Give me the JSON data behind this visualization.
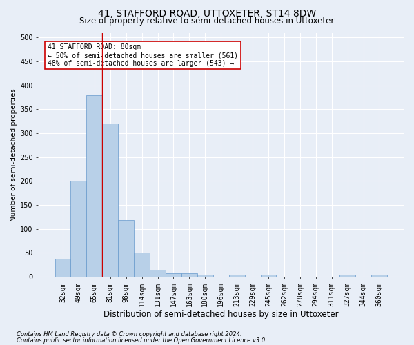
{
  "title_line1": "41, STAFFORD ROAD, UTTOXETER, ST14 8DW",
  "title_line2": "Size of property relative to semi-detached houses in Uttoxeter",
  "xlabel": "Distribution of semi-detached houses by size in Uttoxeter",
  "ylabel": "Number of semi-detached properties",
  "categories": [
    "32sqm",
    "49sqm",
    "65sqm",
    "81sqm",
    "98sqm",
    "114sqm",
    "131sqm",
    "147sqm",
    "163sqm",
    "180sqm",
    "196sqm",
    "213sqm",
    "229sqm",
    "245sqm",
    "262sqm",
    "278sqm",
    "294sqm",
    "311sqm",
    "327sqm",
    "344sqm",
    "360sqm"
  ],
  "values": [
    38,
    200,
    380,
    320,
    118,
    50,
    15,
    7,
    7,
    5,
    0,
    5,
    0,
    5,
    0,
    0,
    0,
    0,
    5,
    0,
    5
  ],
  "bar_color": "#b8d0e8",
  "bar_edge_color": "#6699cc",
  "vline_x_index": 3,
  "vline_color": "#cc0000",
  "annotation_text": "41 STAFFORD ROAD: 80sqm\n← 50% of semi-detached houses are smaller (561)\n48% of semi-detached houses are larger (543) →",
  "annotation_box_color": "#ffffff",
  "annotation_box_edge": "#cc0000",
  "ylim": [
    0,
    510
  ],
  "yticks": [
    0,
    50,
    100,
    150,
    200,
    250,
    300,
    350,
    400,
    450,
    500
  ],
  "footer_line1": "Contains HM Land Registry data © Crown copyright and database right 2024.",
  "footer_line2": "Contains public sector information licensed under the Open Government Licence v3.0.",
  "bg_color": "#e8eef7",
  "grid_color": "#ffffff",
  "title1_fontsize": 10,
  "title2_fontsize": 8.5,
  "xlabel_fontsize": 8.5,
  "ylabel_fontsize": 7.5,
  "tick_fontsize": 7,
  "annotation_fontsize": 7,
  "footer_fontsize": 6
}
